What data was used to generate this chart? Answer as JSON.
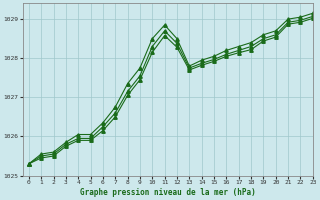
{
  "xlabel": "Graphe pression niveau de la mer (hPa)",
  "xlim": [
    -0.5,
    23
  ],
  "ylim": [
    1025,
    1029.4
  ],
  "yticks": [
    1025,
    1026,
    1027,
    1028,
    1029
  ],
  "xticks": [
    0,
    1,
    2,
    3,
    4,
    5,
    6,
    7,
    8,
    9,
    10,
    11,
    12,
    13,
    14,
    15,
    16,
    17,
    18,
    19,
    20,
    21,
    22,
    23
  ],
  "bg_color": "#cde8ec",
  "line_color": "#1a6b1a",
  "grid_color": "#a0c8cc",
  "line1_x": [
    0,
    1,
    2,
    3,
    4,
    5,
    6,
    7,
    8,
    9,
    10,
    11,
    12,
    13,
    14,
    15,
    16,
    17,
    18,
    19,
    20,
    21,
    22,
    23
  ],
  "line1_y": [
    1025.3,
    1025.55,
    1025.6,
    1025.85,
    1026.05,
    1026.05,
    1026.35,
    1026.75,
    1027.35,
    1027.75,
    1028.5,
    1028.85,
    1028.5,
    1027.8,
    1027.95,
    1028.05,
    1028.2,
    1028.3,
    1028.4,
    1028.6,
    1028.7,
    1029.0,
    1029.05,
    1029.15
  ],
  "line2_x": [
    0,
    1,
    2,
    3,
    4,
    5,
    6,
    7,
    8,
    9,
    10,
    11,
    12,
    13,
    14,
    15,
    16,
    17,
    18,
    19,
    20,
    21,
    22,
    23
  ],
  "line2_y": [
    1025.3,
    1025.5,
    1025.55,
    1025.8,
    1025.95,
    1025.95,
    1026.25,
    1026.6,
    1027.15,
    1027.55,
    1028.3,
    1028.7,
    1028.38,
    1027.75,
    1027.87,
    1027.97,
    1028.1,
    1028.2,
    1028.3,
    1028.5,
    1028.6,
    1028.92,
    1028.97,
    1029.07
  ],
  "line3_x": [
    0,
    1,
    2,
    3,
    4,
    5,
    6,
    7,
    8,
    9,
    10,
    11,
    12,
    13,
    14,
    15,
    16,
    17,
    18,
    19,
    20,
    21,
    22,
    23
  ],
  "line3_y": [
    1025.3,
    1025.45,
    1025.5,
    1025.75,
    1025.9,
    1025.9,
    1026.15,
    1026.5,
    1027.05,
    1027.45,
    1028.15,
    1028.58,
    1028.28,
    1027.7,
    1027.82,
    1027.92,
    1028.05,
    1028.14,
    1028.22,
    1028.44,
    1028.54,
    1028.87,
    1028.92,
    1029.02
  ]
}
